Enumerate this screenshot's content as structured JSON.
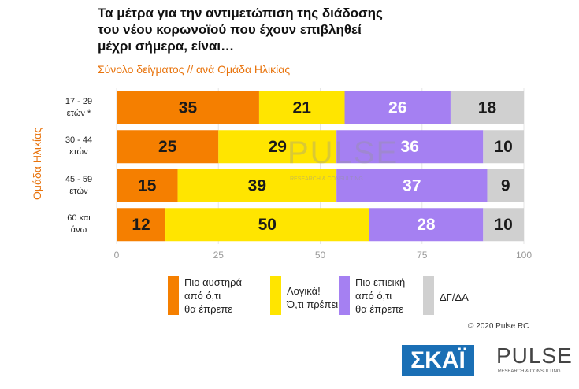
{
  "chart_data": {
    "type": "stacked_barh",
    "title": "Τα μέτρα για την αντιμετώπιση της διάδοσης\nτου νέου κορωνοϊού που έχουν επιβληθεί\nμέχρι σήμερα, είναι…",
    "subtitle": "Σύνολο δείγματος // ανά Ομάδα Ηλικίας",
    "y_label": "Ομάδα Ηλικίας",
    "categories": [
      "17 - 29\nετών *",
      "30 - 44\nετών",
      "45 - 59\nετών",
      "60 και\nάνω"
    ],
    "series": [
      {
        "name": "Πιο αυστηρά\nαπό ό,τι\nθα έπρεπε",
        "color": "#f57f00",
        "text_color": "#1a1a1a",
        "values": [
          35,
          25,
          15,
          12
        ]
      },
      {
        "name": "Λογικά!\nΌ,τι πρέπει",
        "color": "#ffe500",
        "text_color": "#1a1a1a",
        "values": [
          21,
          29,
          39,
          50
        ]
      },
      {
        "name": "Πιο επιεική\nαπό ό,τι\nθα έπρεπε",
        "color": "#a580f2",
        "text_color": "#ffffff",
        "values": [
          26,
          36,
          37,
          28
        ]
      },
      {
        "name": "ΔΓ/ΔΑ",
        "color": "#d0d0d0",
        "text_color": "#1a1a1a",
        "values": [
          18,
          10,
          9,
          10
        ]
      }
    ],
    "xlim": [
      0,
      100
    ],
    "xticks": [
      0,
      25,
      50,
      75,
      100
    ],
    "grid": true,
    "copyright": "© 2020 Pulse RC",
    "watermark": {
      "name": "PULSE",
      "tagline": "RESEARCH & CONSULTING"
    },
    "logos": {
      "skai": "ΣΚΑΪ",
      "pulse": "PULSE",
      "pulse_tagline": "RESEARCH & CONSULTING"
    }
  }
}
